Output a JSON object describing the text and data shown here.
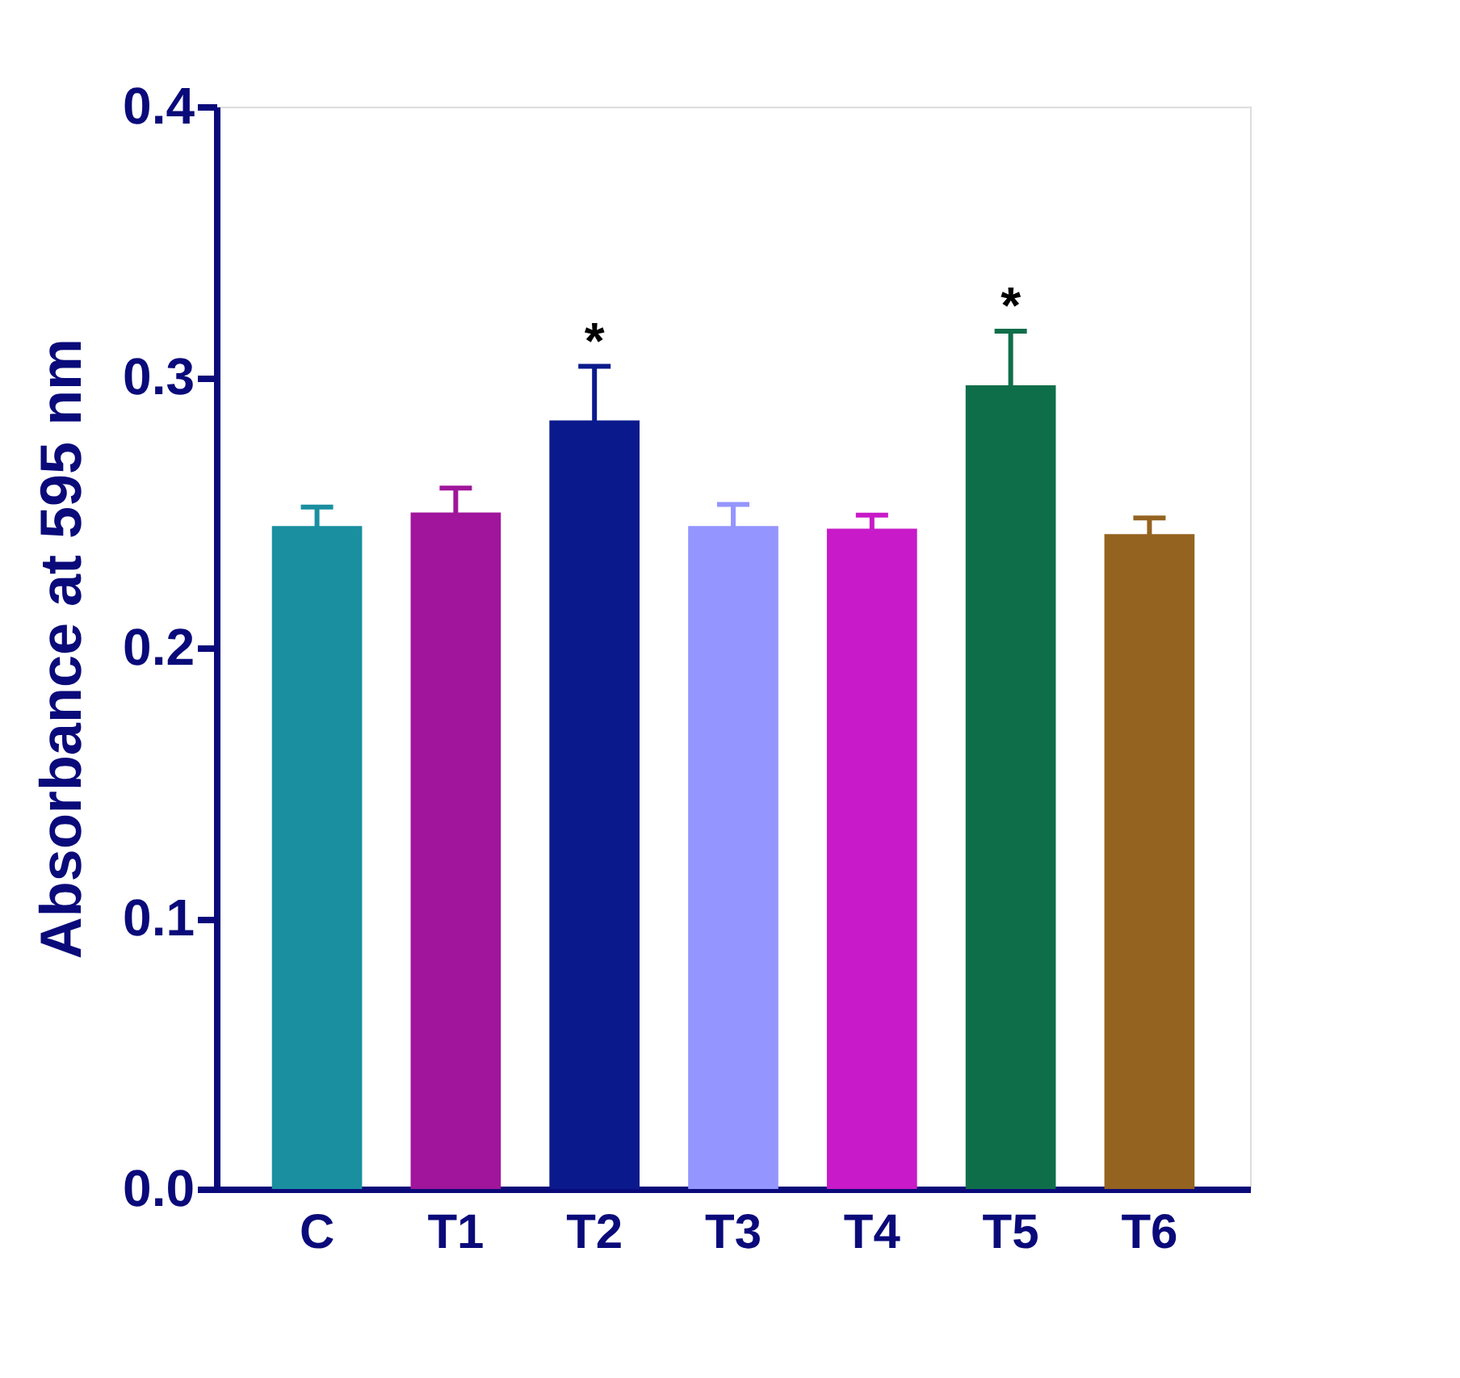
{
  "chart_data": {
    "type": "bar",
    "ylabel": "Absorbance at 595 nm",
    "categories": [
      "C",
      "T1",
      "T2",
      "T3",
      "T4",
      "T5",
      "T6"
    ],
    "values": [
      0.245,
      0.25,
      0.284,
      0.245,
      0.244,
      0.297,
      0.242
    ],
    "errors": [
      0.007,
      0.009,
      0.02,
      0.008,
      0.005,
      0.02,
      0.006
    ],
    "colors": [
      "#1a8fa0",
      "#a0159b",
      "#0a1a8c",
      "#9595ff",
      "#c81ac8",
      "#0f6e4a",
      "#946320"
    ],
    "ylim": [
      0,
      0.4
    ],
    "yticks": [
      {
        "value": 0,
        "label": "0.0"
      },
      {
        "value": 0.1,
        "label": "0.1"
      },
      {
        "value": 0.2,
        "label": "0.2"
      },
      {
        "value": 0.3,
        "label": "0.3"
      },
      {
        "value": 0.4,
        "label": "0.4"
      }
    ],
    "annotations": [
      {
        "text": "*",
        "x": "T2",
        "y": 0.304
      },
      {
        "text": "*",
        "x": "T5",
        "y": 0.317
      }
    ],
    "grid": false
  }
}
